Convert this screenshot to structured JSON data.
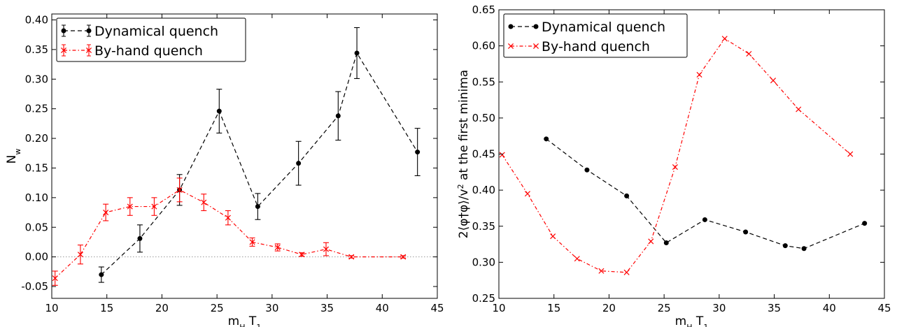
{
  "chart_data": [
    {
      "type": "line",
      "subplot": "left",
      "xlabel": "m_H T_1",
      "ylabel": "N_w",
      "xlim": [
        10,
        45
      ],
      "ylim": [
        -0.07,
        0.41
      ],
      "xticks": [
        "10",
        "15",
        "20",
        "25",
        "30",
        "35",
        "40",
        "45"
      ],
      "yticks": [
        "-0.05",
        "0.00",
        "0.05",
        "0.10",
        "0.15",
        "0.20",
        "0.25",
        "0.30",
        "0.35",
        "0.40"
      ],
      "reference_line": {
        "y": 0,
        "style": "dotted",
        "color": "#999999"
      },
      "legend_position": "top-left",
      "series": [
        {
          "name": "Dynamical quench",
          "color": "#000000",
          "marker": "dot",
          "line_style": "dashed",
          "error_bars": true,
          "x": [
            14.5,
            18.0,
            21.6,
            25.2,
            28.7,
            32.4,
            36.0,
            37.7,
            43.2
          ],
          "y": [
            -0.03,
            0.031,
            0.113,
            0.246,
            0.085,
            0.158,
            0.238,
            0.344,
            0.177
          ],
          "err": [
            0.013,
            0.023,
            0.026,
            0.037,
            0.022,
            0.037,
            0.041,
            0.043,
            0.04
          ]
        },
        {
          "name": "By-hand quench",
          "color": "#ff0000",
          "marker": "x",
          "line_style": "dashdot",
          "error_bars": true,
          "x": [
            10.3,
            12.6,
            14.9,
            17.1,
            19.3,
            21.6,
            23.8,
            26.0,
            28.2,
            30.5,
            32.7,
            34.9,
            37.2,
            41.9
          ],
          "y": [
            -0.036,
            0.004,
            0.075,
            0.085,
            0.085,
            0.113,
            0.092,
            0.066,
            0.025,
            0.016,
            0.004,
            0.013,
            0.0,
            0.0
          ],
          "err": [
            0.012,
            0.016,
            0.014,
            0.015,
            0.015,
            0.02,
            0.014,
            0.012,
            0.007,
            0.006,
            0.003,
            0.011,
            0.002,
            0.002
          ]
        }
      ]
    },
    {
      "type": "line",
      "subplot": "right",
      "xlabel": "m_H T_1",
      "ylabel": "2⟨φ†φ⟩/v² at the first minima",
      "xlim": [
        10,
        45
      ],
      "ylim": [
        0.25,
        0.65
      ],
      "xticks": [
        "10",
        "15",
        "20",
        "25",
        "30",
        "35",
        "40",
        "45"
      ],
      "yticks": [
        "0.25",
        "0.30",
        "0.35",
        "0.40",
        "0.45",
        "0.50",
        "0.55",
        "0.60",
        "0.65"
      ],
      "legend_position": "top-left",
      "series": [
        {
          "name": "Dynamical quench",
          "color": "#000000",
          "marker": "dot",
          "line_style": "dashed",
          "x": [
            14.3,
            18.0,
            21.6,
            25.2,
            28.7,
            32.4,
            36.0,
            37.7,
            43.2
          ],
          "y": [
            0.471,
            0.428,
            0.392,
            0.327,
            0.359,
            0.342,
            0.323,
            0.319,
            0.354
          ]
        },
        {
          "name": "By-hand quench",
          "color": "#ff0000",
          "marker": "x",
          "line_style": "dashdot",
          "x": [
            10.3,
            12.6,
            14.9,
            17.1,
            19.3,
            21.6,
            23.8,
            26.0,
            28.2,
            30.5,
            32.7,
            34.9,
            37.2,
            41.9
          ],
          "y": [
            0.449,
            0.395,
            0.336,
            0.305,
            0.288,
            0.286,
            0.329,
            0.432,
            0.56,
            0.61,
            0.589,
            0.552,
            0.512,
            0.45
          ]
        }
      ]
    }
  ]
}
